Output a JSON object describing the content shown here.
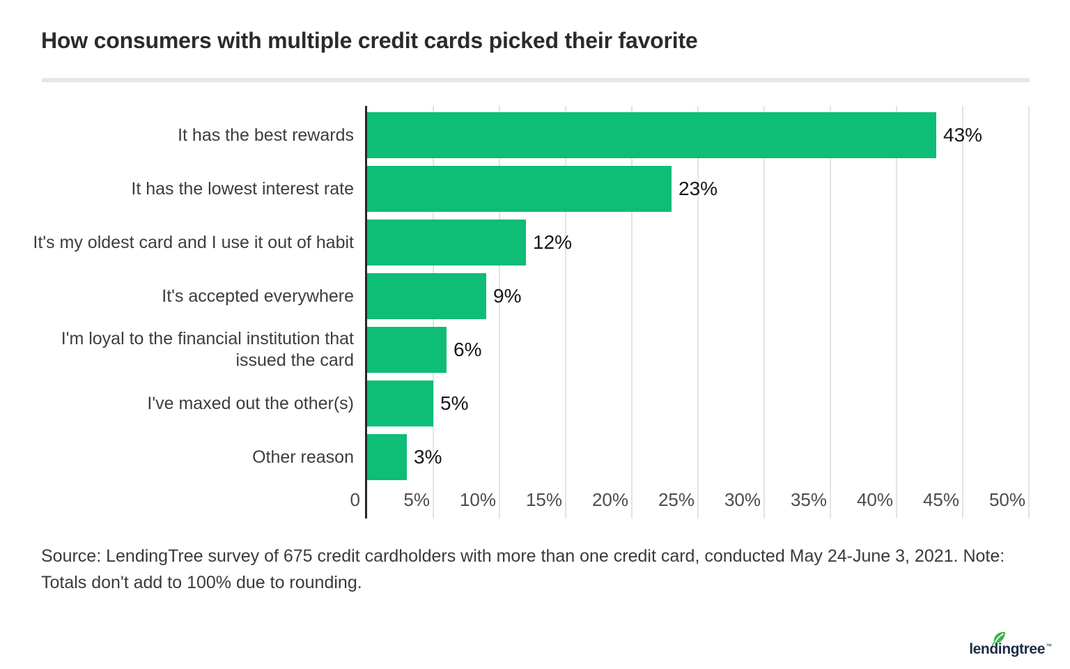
{
  "header": {
    "title": "How consumers with multiple credit cards picked their favorite"
  },
  "chart_data": {
    "type": "bar",
    "orientation": "horizontal",
    "title": "How consumers with multiple credit cards picked their favorite",
    "categories": [
      "It has the best rewards",
      "It has the lowest interest rate",
      "It's my oldest card and I use it out of habit",
      "It's accepted everywhere",
      "I'm loyal to the financial institution that issued the card",
      "I've maxed out the other(s)",
      "Other reason"
    ],
    "values": [
      43,
      23,
      12,
      9,
      6,
      5,
      3
    ],
    "value_labels": [
      "43%",
      "23%",
      "12%",
      "9%",
      "6%",
      "5%",
      "3%"
    ],
    "xlabel": "",
    "ylabel": "",
    "xlim": [
      0,
      50
    ],
    "x_ticks": [
      {
        "value": 0,
        "label": "0"
      },
      {
        "value": 5,
        "label": "5%"
      },
      {
        "value": 10,
        "label": "10%"
      },
      {
        "value": 15,
        "label": "15%"
      },
      {
        "value": 20,
        "label": "20%"
      },
      {
        "value": 25,
        "label": "25%"
      },
      {
        "value": 30,
        "label": "30%"
      },
      {
        "value": 35,
        "label": "35%"
      },
      {
        "value": 40,
        "label": "40%"
      },
      {
        "value": 45,
        "label": "45%"
      },
      {
        "value": 50,
        "label": "50%"
      }
    ],
    "grid": true,
    "legend": false
  },
  "footer": {
    "source_line1": "Source: LendingTree survey of 675 credit cardholders with more than one credit card, conducted May 24-June 3, 2021. Note:",
    "source_line2": "Totals don't add to 100% due to rounding."
  },
  "logo": {
    "text": "lendingtree",
    "trademark": "™",
    "leaf_letter_index": 4
  },
  "colors": {
    "bar_green": "#0ebd76",
    "axis_line": "#262626",
    "gridline": "#e3e3e3",
    "divider": "#e6e6e6",
    "title_text": "#2b2b2b",
    "category_text": "#3d3d3d",
    "tick_text": "#4c4c4c",
    "value_text": "#161616",
    "source_text": "#3a3a3a",
    "logo_navy": "#1d2d44",
    "leaf_green": "#3cb54d"
  }
}
